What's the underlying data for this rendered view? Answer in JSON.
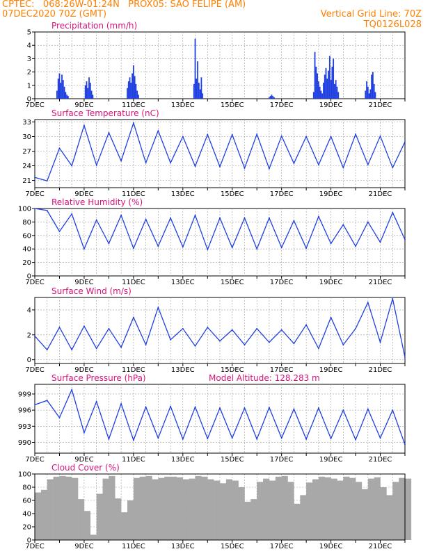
{
  "header": {
    "left_line1": "CPTEC:   068:26W-01:24N   PROX05: SAO FELIPE (AM)",
    "left_line2": "07DEC2020 70Z (GMT)",
    "right_line2": "Vertical Grid Line: 70Z",
    "right_line3": "TQ0126L028"
  },
  "colors": {
    "header": "#ff7f00",
    "title": "#d6137a",
    "line": "#1f3fe0",
    "bar": "#1f3fe0",
    "cloud": "#a8a8a8"
  },
  "x_tick_labels": [
    "7DEC",
    "9DEC",
    "11DEC",
    "13DEC",
    "15DEC",
    "17DEC",
    "19DEC",
    "21DEC"
  ],
  "chart_data": [
    {
      "type": "bar",
      "title": "Precipitation (mm/h)",
      "ylim": [
        0,
        5
      ],
      "yticks": [
        0,
        1,
        2,
        3,
        4,
        5
      ],
      "x": [
        0.9,
        0.95,
        1.0,
        1.05,
        1.1,
        1.15,
        1.2,
        1.25,
        1.3,
        1.35,
        2.05,
        2.1,
        2.15,
        2.2,
        2.25,
        2.3,
        2.35,
        3.75,
        3.8,
        3.85,
        3.9,
        3.95,
        4.0,
        4.05,
        4.1,
        4.15,
        4.2,
        6.45,
        6.5,
        6.55,
        6.6,
        6.65,
        6.7,
        6.75,
        6.8,
        9.5,
        9.55,
        9.6,
        9.65,
        9.7,
        11.3,
        11.35,
        11.4,
        11.45,
        11.5,
        11.55,
        11.6,
        11.65,
        11.7,
        11.75,
        11.8,
        11.85,
        11.9,
        11.95,
        12.0,
        12.05,
        12.1,
        12.15,
        12.2,
        12.25,
        12.3,
        13.4,
        13.45,
        13.5,
        13.55,
        13.6,
        13.65,
        13.7,
        13.75,
        13.8
      ],
      "values": [
        0.6,
        1.5,
        1.9,
        1.2,
        1.8,
        1.4,
        0.9,
        0.5,
        0.3,
        0.2,
        1.0,
        1.3,
        0.8,
        1.6,
        1.2,
        0.6,
        0.3,
        0.8,
        1.3,
        1.6,
        1.2,
        1.9,
        2.5,
        1.7,
        1.1,
        0.6,
        0.3,
        1.1,
        4.5,
        1.5,
        2.8,
        1.2,
        0.7,
        1.6,
        0.4,
        0.1,
        0.2,
        0.3,
        0.2,
        0.1,
        0.5,
        3.5,
        2.4,
        1.9,
        1.3,
        0.9,
        0.6,
        0.4,
        1.2,
        1.8,
        2.3,
        1.5,
        2.1,
        3.2,
        1.4,
        2.4,
        3.0,
        1.1,
        1.4,
        0.9,
        0.5,
        0.6,
        1.3,
        0.9,
        0.4,
        0.7,
        1.8,
        2.0,
        1.1,
        0.5
      ]
    },
    {
      "type": "line",
      "title": "Surface Temperature (nC)",
      "ylim": [
        19.5,
        33.5
      ],
      "yticks": [
        21,
        24,
        27,
        30,
        33
      ],
      "x": [
        0,
        0.5,
        1.0,
        1.5,
        2.0,
        2.5,
        3.0,
        3.5,
        4.0,
        4.5,
        5.0,
        5.5,
        6.0,
        6.5,
        7.0,
        7.5,
        8.0,
        8.5,
        9.0,
        9.5,
        10.0,
        10.5,
        11.0,
        11.5,
        12.0,
        12.5,
        13.0,
        13.5,
        14.0,
        14.5,
        15.0
      ],
      "values": [
        21.6,
        20.9,
        27.6,
        24.0,
        32.3,
        24.1,
        30.8,
        25.0,
        32.8,
        24.6,
        31.2,
        24.6,
        30.0,
        23.9,
        30.4,
        23.8,
        30.4,
        23.5,
        30.5,
        23.4,
        30.1,
        24.5,
        30.0,
        24.2,
        30.0,
        23.6,
        30.5,
        24.2,
        30.1,
        23.6,
        28.9
      ]
    },
    {
      "type": "line",
      "title": "Relative Humidity (%)",
      "ylim": [
        0,
        100
      ],
      "yticks": [
        0,
        20,
        40,
        60,
        80,
        100
      ],
      "x": [
        0,
        0.5,
        1.0,
        1.5,
        2.0,
        2.5,
        3.0,
        3.5,
        4.0,
        4.5,
        5.0,
        5.5,
        6.0,
        6.5,
        7.0,
        7.5,
        8.0,
        8.5,
        9.0,
        9.5,
        10.0,
        10.5,
        11.0,
        11.5,
        12.0,
        12.5,
        13.0,
        13.5,
        14.0,
        14.5,
        15.0
      ],
      "values": [
        100,
        97,
        66,
        92,
        40,
        83,
        48,
        90,
        41,
        84,
        44,
        86,
        43,
        90,
        39,
        86,
        42,
        86,
        40,
        86,
        42,
        82,
        41,
        88,
        48,
        76,
        44,
        80,
        50,
        94,
        54
      ]
    },
    {
      "type": "line",
      "title": "Surface Wind (m/s)",
      "ylim": [
        -0.3,
        5.0
      ],
      "yticks": [
        0,
        2,
        4
      ],
      "x": [
        0,
        0.5,
        1.0,
        1.5,
        2.0,
        2.5,
        3.0,
        3.5,
        4.0,
        4.5,
        5.0,
        5.5,
        6.0,
        6.5,
        7.0,
        7.5,
        8.0,
        8.5,
        9.0,
        9.5,
        10.0,
        10.5,
        11.0,
        11.5,
        12.0,
        12.5,
        13.0,
        13.5,
        14.0,
        14.5,
        15.0
      ],
      "values": [
        1.9,
        0.8,
        2.6,
        0.8,
        2.7,
        0.9,
        2.5,
        1.0,
        3.4,
        1.2,
        4.2,
        1.6,
        2.5,
        1.1,
        2.6,
        1.5,
        2.4,
        1.2,
        2.5,
        1.4,
        2.4,
        1.3,
        2.8,
        0.9,
        3.4,
        1.2,
        2.5,
        4.6,
        1.4,
        4.9,
        0.2
      ]
    },
    {
      "type": "line",
      "title": "Surface Pressure (hPa)",
      "annotation": "Model Altitude: 128.283 m",
      "ylim": [
        988.0,
        1000.8
      ],
      "yticks": [
        990,
        993,
        996,
        999
      ],
      "x": [
        0,
        0.5,
        1.0,
        1.5,
        2.0,
        2.5,
        3.0,
        3.5,
        4.0,
        4.5,
        5.0,
        5.5,
        6.0,
        6.5,
        7.0,
        7.5,
        8.0,
        8.5,
        9.0,
        9.5,
        10.0,
        10.5,
        11.0,
        11.5,
        12.0,
        12.5,
        13.0,
        13.5,
        14.0,
        14.5,
        15.0
      ],
      "values": [
        997.0,
        997.8,
        994.6,
        999.8,
        991.8,
        997.6,
        990.6,
        997.2,
        990.4,
        996.6,
        990.8,
        996.7,
        990.6,
        996.6,
        990.7,
        996.4,
        990.8,
        996.4,
        990.6,
        996.5,
        990.8,
        996.2,
        990.6,
        996.4,
        990.7,
        996.0,
        990.5,
        996.2,
        990.8,
        996.0,
        989.6
      ]
    },
    {
      "type": "area",
      "title": "Cloud Cover (%)",
      "ylim": [
        0,
        100
      ],
      "yticks": [
        0,
        20,
        40,
        60,
        80,
        100
      ],
      "x": [
        0,
        0.25,
        0.5,
        0.75,
        1.0,
        1.25,
        1.5,
        1.75,
        2.0,
        2.25,
        2.5,
        2.75,
        3.0,
        3.25,
        3.5,
        3.75,
        4.0,
        4.25,
        4.5,
        4.75,
        5.0,
        5.25,
        5.5,
        5.75,
        6.0,
        6.25,
        6.5,
        6.75,
        7.0,
        7.25,
        7.5,
        7.75,
        8.0,
        8.25,
        8.5,
        8.75,
        9.0,
        9.25,
        9.5,
        9.75,
        10.0,
        10.25,
        10.5,
        10.75,
        11.0,
        11.25,
        11.5,
        11.75,
        12.0,
        12.25,
        12.5,
        12.75,
        13.0,
        13.25,
        13.5,
        13.75,
        14.0,
        14.25,
        14.5,
        14.75,
        15.0
      ],
      "values": [
        72,
        76,
        92,
        96,
        97,
        96,
        94,
        62,
        44,
        8,
        70,
        93,
        97,
        63,
        42,
        60,
        94,
        96,
        97,
        92,
        94,
        96,
        96,
        95,
        92,
        93,
        97,
        96,
        92,
        90,
        86,
        92,
        90,
        80,
        58,
        62,
        88,
        93,
        90,
        96,
        97,
        88,
        55,
        68,
        87,
        92,
        96,
        95,
        93,
        90,
        96,
        94,
        88,
        77,
        93,
        95,
        80,
        68,
        88,
        94,
        93
      ]
    }
  ]
}
